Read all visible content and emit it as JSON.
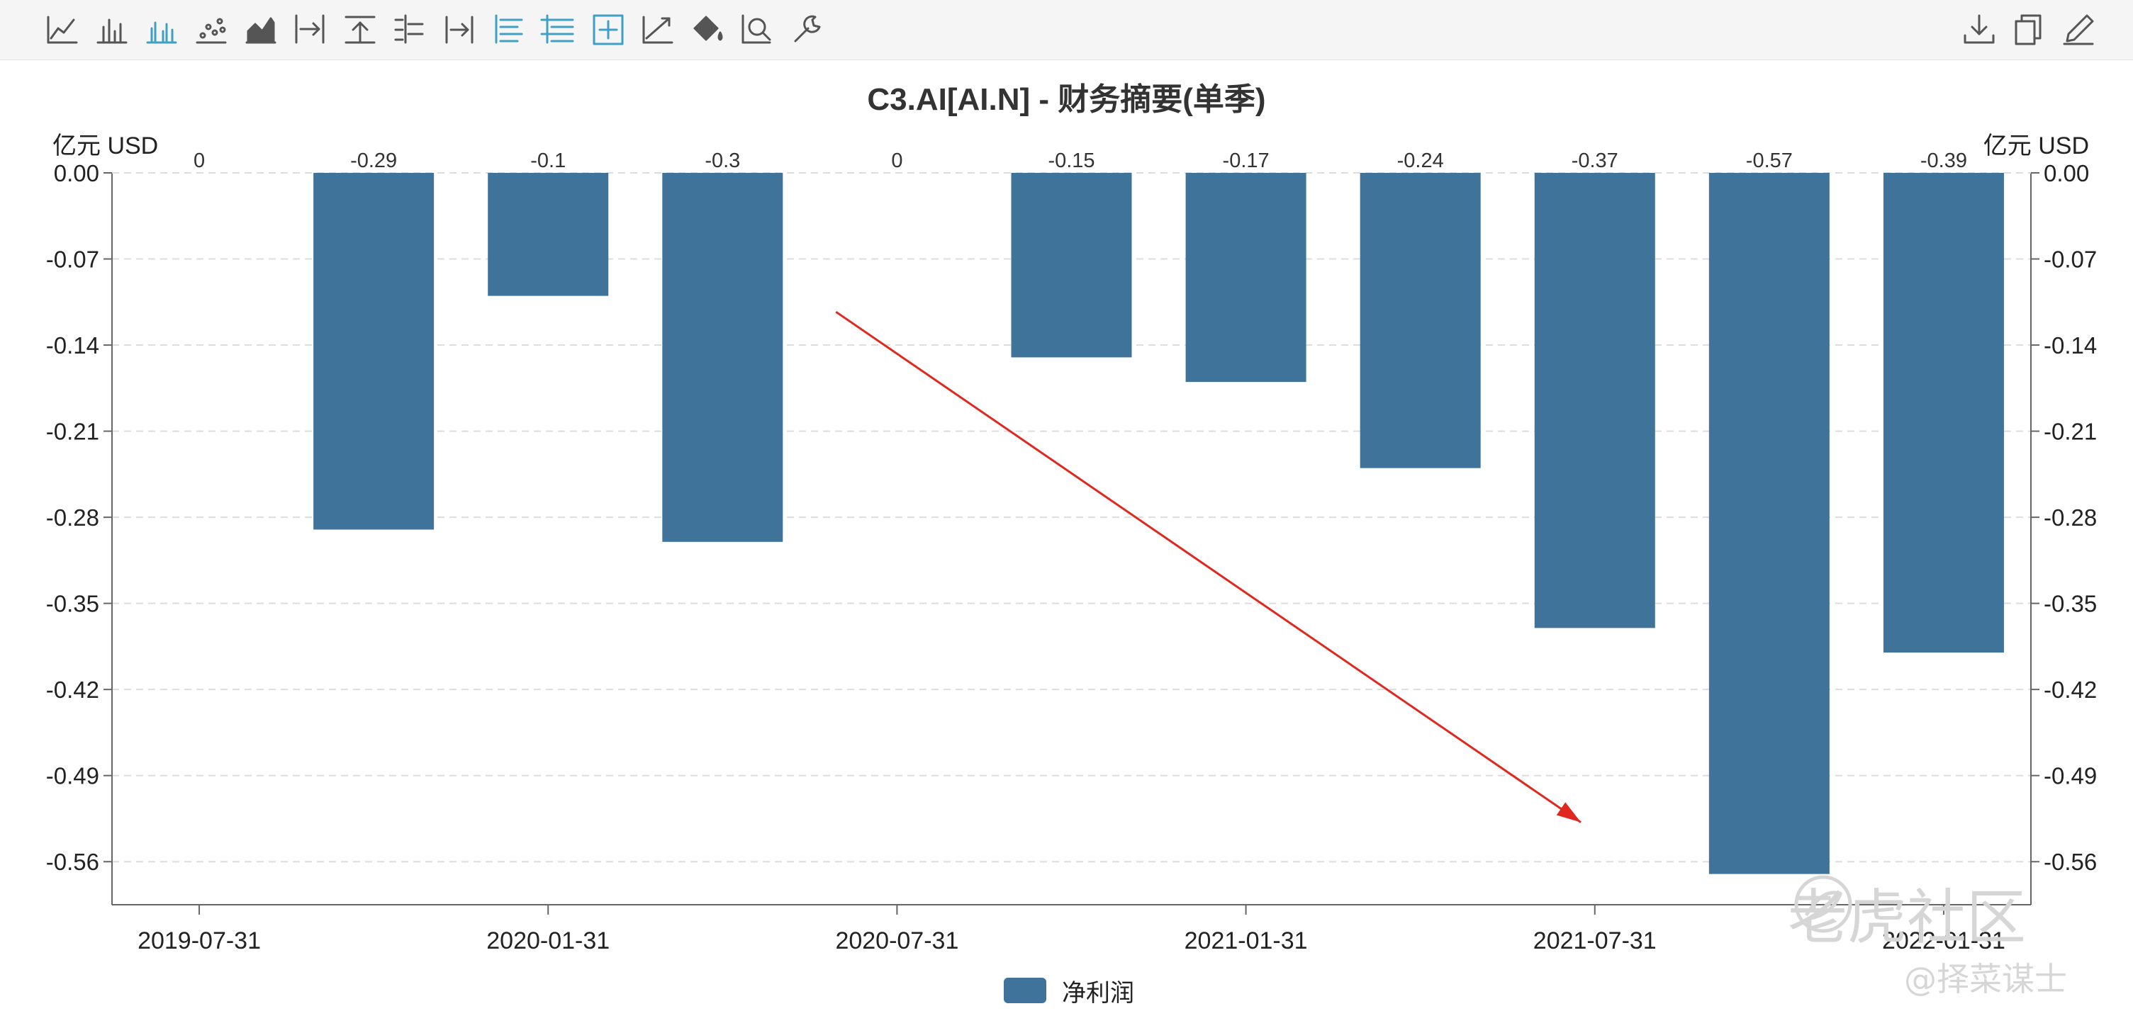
{
  "toolbar": {
    "left_tools": [
      "line-chart-icon",
      "bar-chart-icon",
      "grouped-bar-chart-icon",
      "scatter-chart-icon",
      "area-chart-icon",
      "to-end-icon",
      "upload-icon",
      "list-tree-icon",
      "goto-icon",
      "list-icon",
      "indent-list-icon",
      "add-box-icon",
      "trend-icon",
      "paint-bucket-icon",
      "zoom-icon",
      "wrench-icon"
    ],
    "active_tools": [
      "grouped-bar-chart-icon",
      "list-icon",
      "indent-list-icon",
      "add-box-icon"
    ],
    "right_tools": [
      "download-icon",
      "copy-icon",
      "edit-icon"
    ]
  },
  "colors": {
    "bar": "#3f7399",
    "arrow": "#e0281e",
    "active_icon": "#3fa0c4",
    "icon": "#555555",
    "grid": "#dddddd",
    "axis": "#666666"
  },
  "chart_data": {
    "type": "bar",
    "title": "C3.AI[AI.N] - 财务摘要(单季)",
    "unit_left": "亿元  USD",
    "unit_right": "亿元  USD",
    "series": [
      {
        "name": "净利润",
        "values": [
          0,
          -0.29,
          -0.1,
          -0.3,
          0,
          -0.15,
          -0.17,
          -0.24,
          -0.37,
          -0.57,
          -0.39
        ]
      }
    ],
    "bar_labels": [
      "0",
      "-0.29",
      "-0.1",
      "-0.3",
      "0",
      "-0.15",
      "-0.17",
      "-0.24",
      "-0.37",
      "-0.57",
      "-0.39"
    ],
    "x_tick_labels": [
      "2019-07-31",
      "2020-01-31",
      "2020-07-31",
      "2021-01-31",
      "2021-07-31",
      "2022-01-31"
    ],
    "y_ticks": [
      "0.00",
      "-0.07",
      "-0.14",
      "-0.21",
      "-0.28",
      "-0.35",
      "-0.42",
      "-0.49",
      "-0.56"
    ],
    "ylim": [
      -0.595,
      0
    ],
    "grid": true,
    "legend_position": "bottom-center"
  },
  "annotation": {
    "type": "arrow",
    "x_from": 4.15,
    "y_from": -0.113,
    "x_to": 8.42,
    "y_to": -0.528
  },
  "watermark": {
    "brand": "老虎社区",
    "author": "@择菜谋士"
  }
}
